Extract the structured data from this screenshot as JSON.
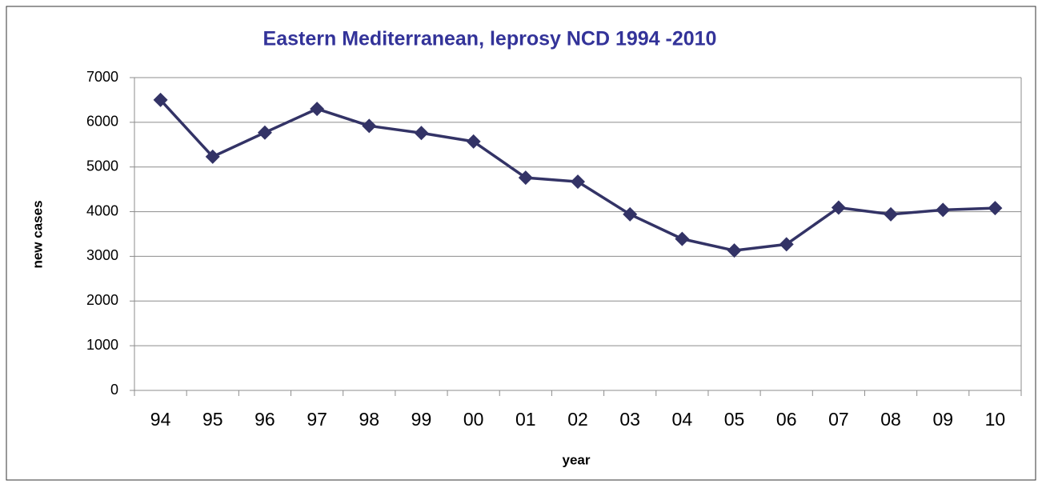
{
  "chart_data": {
    "type": "line",
    "title": "Eastern Mediterranean, leprosy NCD 1994 -2010",
    "x_label": "year",
    "y_label": "new cases",
    "categories": [
      "94",
      "95",
      "96",
      "97",
      "98",
      "99",
      "00",
      "01",
      "02",
      "03",
      "04",
      "05",
      "06",
      "07",
      "08",
      "09",
      "10"
    ],
    "series": [
      {
        "name": "new cases",
        "color": "#333366",
        "values": [
          6500,
          5230,
          5770,
          6300,
          5920,
          5760,
          5570,
          4760,
          4670,
          3940,
          3390,
          3130,
          3270,
          4090,
          3940,
          4040,
          4080
        ]
      }
    ],
    "ylim": [
      0,
      7000
    ],
    "yticks": [
      0,
      1000,
      2000,
      3000,
      4000,
      5000,
      6000,
      7000
    ],
    "grid": true,
    "title_color": "#333399"
  }
}
